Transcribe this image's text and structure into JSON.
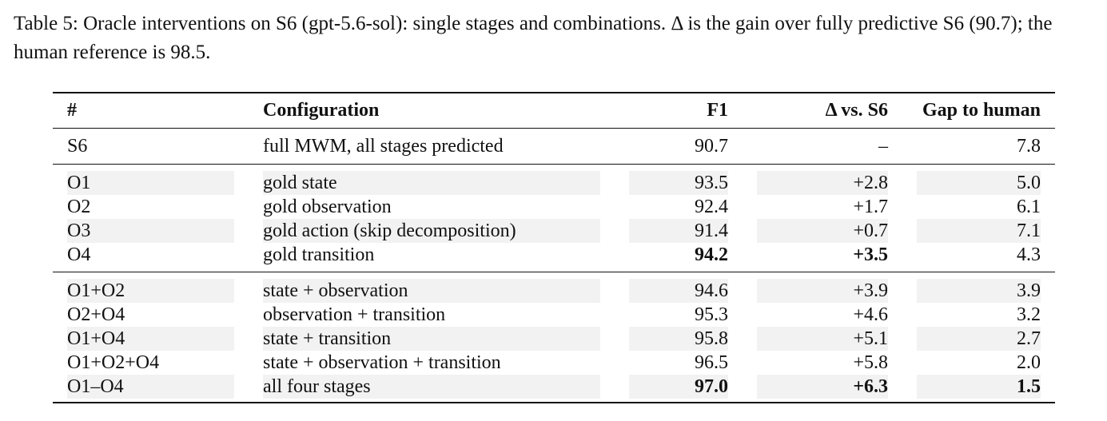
{
  "caption": "Table 5: Oracle interventions on S6 (gpt-5.6-sol): single stages and combinations. Δ is the gain over fully predictive S6 (90.7); the human reference is 98.5.",
  "table": {
    "headers": [
      "#",
      "Configuration",
      "F1",
      "Δ vs. S6",
      "Gap to human"
    ],
    "baseline": {
      "id": "S6",
      "config": "full MWM, all stages predicted",
      "f1": "90.7",
      "delta": "–",
      "gap": "7.8"
    },
    "single": [
      {
        "id": "O1",
        "config": "gold state",
        "f1": "93.5",
        "delta": "+2.8",
        "gap": "5.0"
      },
      {
        "id": "O2",
        "config": "gold observation",
        "f1": "92.4",
        "delta": "+1.7",
        "gap": "6.1"
      },
      {
        "id": "O3",
        "config": "gold action (skip decomposition)",
        "f1": "91.4",
        "delta": "+0.7",
        "gap": "7.1"
      },
      {
        "id": "O4",
        "config": "gold transition",
        "f1": "94.2",
        "delta": "+3.5",
        "gap": "4.3"
      }
    ],
    "combined": [
      {
        "id": "O1+O2",
        "config": "state + observation",
        "f1": "94.6",
        "delta": "+3.9",
        "gap": "3.9"
      },
      {
        "id": "O2+O4",
        "config": "observation + transition",
        "f1": "95.3",
        "delta": "+4.6",
        "gap": "3.2"
      },
      {
        "id": "O1+O4",
        "config": "state + transition",
        "f1": "95.8",
        "delta": "+5.1",
        "gap": "2.7"
      },
      {
        "id": "O1+O2+O4",
        "config": "state + observation + transition",
        "f1": "96.5",
        "delta": "+5.8",
        "gap": "2.0"
      },
      {
        "id": "O1–O4",
        "config": "all four stages",
        "f1": "97.0",
        "delta": "+6.3",
        "gap": "1.5"
      }
    ]
  }
}
